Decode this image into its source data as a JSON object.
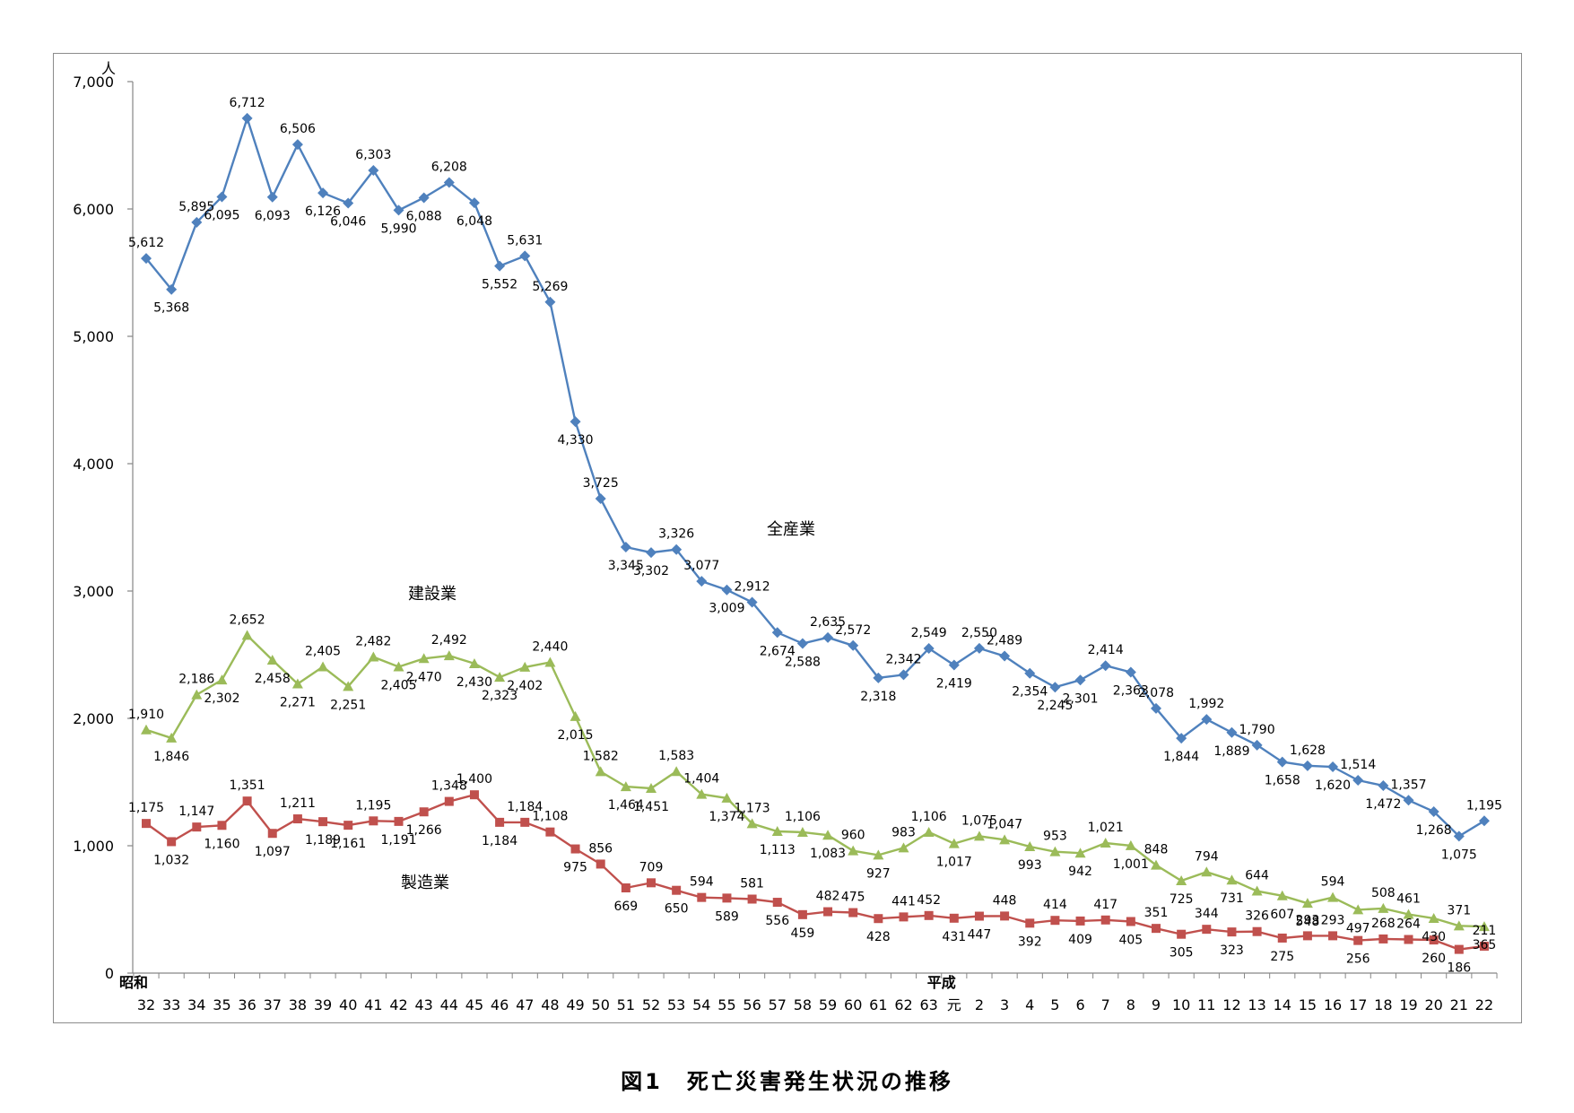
{
  "caption": "図1　死亡災害発生状況の推移",
  "chart_data": {
    "type": "line",
    "title": "図1　死亡災害発生状況の推移",
    "ylabel": "人",
    "ylim": [
      0,
      7000
    ],
    "yticks": [
      "0",
      "1,000",
      "2,000",
      "3,000",
      "4,000",
      "5,000",
      "6,000",
      "7,000"
    ],
    "grid": false,
    "era_labels": [
      {
        "text": "昭和",
        "at": "32"
      },
      {
        "text": "平成",
        "at": "元"
      }
    ],
    "categories": [
      "32",
      "33",
      "34",
      "35",
      "36",
      "37",
      "38",
      "39",
      "40",
      "41",
      "42",
      "43",
      "44",
      "45",
      "46",
      "47",
      "48",
      "49",
      "50",
      "51",
      "52",
      "53",
      "54",
      "55",
      "56",
      "57",
      "58",
      "59",
      "60",
      "61",
      "62",
      "63",
      "元",
      "2",
      "3",
      "4",
      "5",
      "6",
      "7",
      "8",
      "9",
      "10",
      "11",
      "12",
      "13",
      "14",
      "15",
      "16",
      "17",
      "18",
      "19",
      "20",
      "21",
      "22"
    ],
    "series": [
      {
        "name": "全産業",
        "color": "#4f81bd",
        "marker": "diamond",
        "values": [
          5612,
          5368,
          5895,
          6095,
          6712,
          6093,
          6506,
          6126,
          6046,
          6303,
          5990,
          6088,
          6208,
          6048,
          5552,
          5631,
          5269,
          4330,
          3725,
          3345,
          3302,
          3326,
          3077,
          3009,
          2912,
          2674,
          2588,
          2635,
          2572,
          2318,
          2342,
          2549,
          2419,
          2550,
          2489,
          2354,
          2245,
          2301,
          2414,
          2363,
          2078,
          1844,
          1992,
          1889,
          1790,
          1658,
          1628,
          1620,
          1514,
          1472,
          1357,
          1268,
          1075,
          1195
        ],
        "labels": [
          "5,612",
          "5,368",
          "5,895",
          "6,095",
          "6,712",
          "6,093",
          "6,506",
          "6,126",
          "6,046",
          "6,303",
          "5,990",
          "6,088",
          "6,208",
          "6,048",
          "5,552",
          "5,631",
          "5,269",
          "4,330",
          "3,725",
          "3,345",
          "3,302",
          "3,326",
          "3,077",
          "3,009",
          "2,912",
          "2,674",
          "2,588",
          "2,635",
          "2,572",
          "2,318",
          "2,342",
          "2,549",
          "2,419",
          "2,550",
          "2,489",
          "2,354",
          "2,245",
          "2,301",
          "2,414",
          "2,363",
          "2,078",
          "1,844",
          "1,992",
          "1,889",
          "1,790",
          "1,658",
          "1,628",
          "1,620",
          "1,514",
          "1,472",
          "1,357",
          "1,268",
          "1,075",
          "1,195"
        ]
      },
      {
        "name": "建設業",
        "color": "#9bbb59",
        "marker": "triangle",
        "values": [
          1910,
          1846,
          2186,
          2302,
          2652,
          2458,
          2271,
          2405,
          2251,
          2482,
          2405,
          2470,
          2492,
          2430,
          2323,
          2402,
          2440,
          2015,
          1582,
          1464,
          1451,
          1583,
          1404,
          1374,
          1173,
          1113,
          1106,
          1083,
          960,
          927,
          983,
          1106,
          1017,
          1075,
          1047,
          993,
          953,
          942,
          1021,
          1001,
          848,
          725,
          794,
          731,
          644,
          607,
          548,
          594,
          497,
          508,
          461,
          430,
          371,
          365
        ],
        "labels": [
          "1,910",
          "1,846",
          "2,186",
          "2,302",
          "2,652",
          "2,458",
          "2,271",
          "2,405",
          "2,251",
          "2,482",
          "2,405",
          "2,470",
          "2,492",
          "2,430",
          "2,323",
          "2,402",
          "2,440",
          "2,015",
          "1,582",
          "1,464",
          "1,451",
          "1,583",
          "1,404",
          "1,374",
          "1,173",
          "1,113",
          "1,106",
          "1,083",
          "960",
          "927",
          "983",
          "1,106",
          "1,017",
          "1,075",
          "1,047",
          "993",
          "953",
          "942",
          "1,021",
          "1,001",
          "848",
          "725",
          "794",
          "731",
          "644",
          "607",
          "548",
          "594",
          "497",
          "508",
          "461",
          "430",
          "371",
          "365"
        ]
      },
      {
        "name": "製造業",
        "color": "#c0504d",
        "marker": "square",
        "values": [
          1175,
          1032,
          1147,
          1160,
          1351,
          1097,
          1211,
          1189,
          1161,
          1195,
          1191,
          1266,
          1348,
          1400,
          1184,
          1184,
          1108,
          975,
          856,
          669,
          709,
          650,
          594,
          589,
          581,
          556,
          459,
          482,
          475,
          428,
          441,
          452,
          431,
          447,
          448,
          392,
          414,
          409,
          417,
          405,
          351,
          305,
          344,
          323,
          326,
          275,
          293,
          293,
          256,
          268,
          264,
          260,
          186,
          211
        ],
        "labels": [
          "1,175",
          "1,032",
          "1,147",
          "1,160",
          "1,351",
          "1,097",
          "1,211",
          "1,189",
          "1,161",
          "1,195",
          "1,191",
          "1,266",
          "1,348",
          "1,400",
          "1,184",
          "1,184",
          "1,108",
          "975",
          "856",
          "669",
          "709",
          "650",
          "594",
          "589",
          "581",
          "556",
          "459",
          "482",
          "475",
          "428",
          "441",
          "452",
          "431",
          "447",
          "448",
          "392",
          "414",
          "409",
          "417",
          "405",
          "351",
          "305",
          "344",
          "323",
          "326",
          "275",
          "293",
          "293",
          "256",
          "268",
          "264",
          "260",
          "186",
          "211"
        ]
      }
    ]
  }
}
